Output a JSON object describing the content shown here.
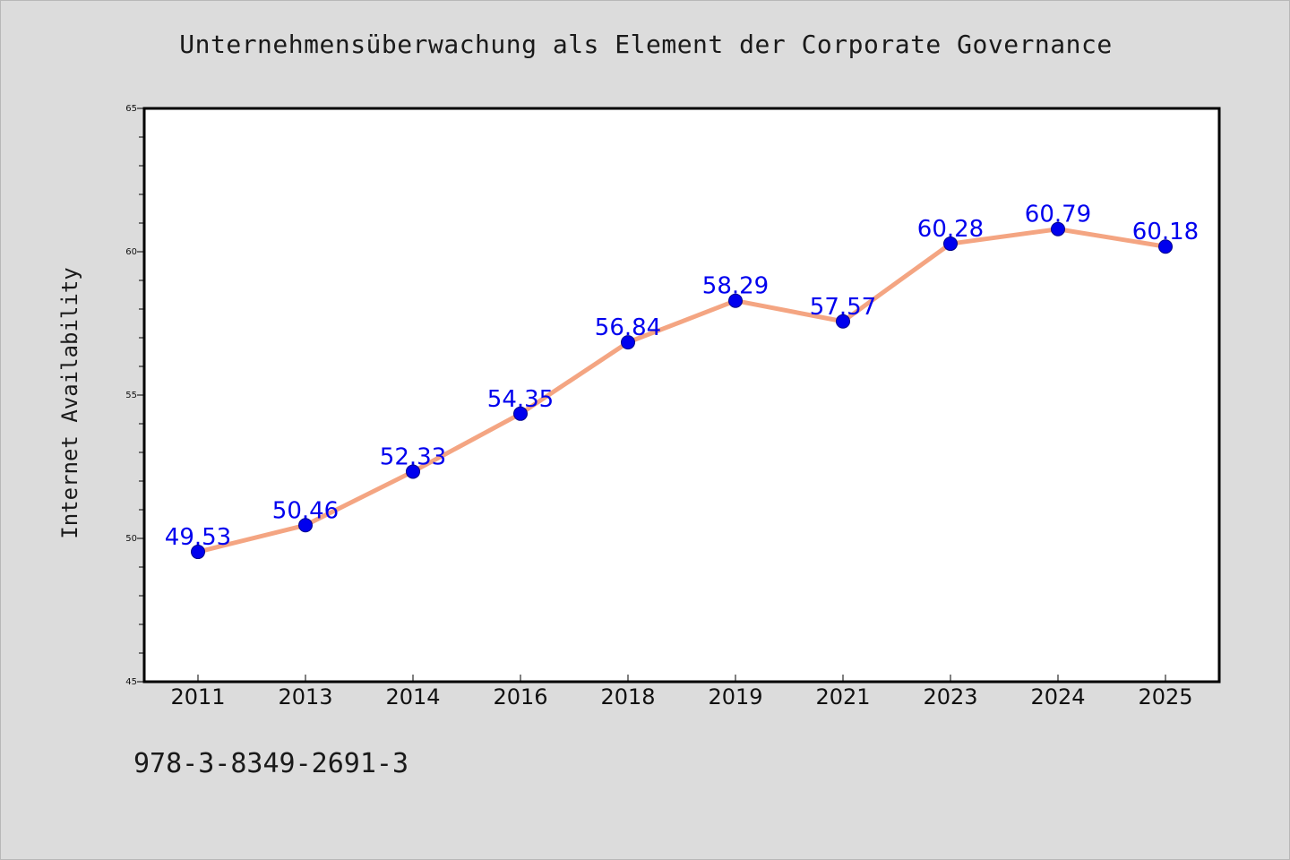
{
  "chart_data": {
    "type": "line",
    "title": "Unternehmensüberwachung als Element der Corporate Governance",
    "xlabel": "",
    "ylabel": "Internet Availability",
    "categories": [
      "2011",
      "2013",
      "2014",
      "2016",
      "2018",
      "2019",
      "2021",
      "2023",
      "2024",
      "2025"
    ],
    "series": [
      {
        "values": [
          49.53,
          50.46,
          52.33,
          54.35,
          56.84,
          58.29,
          57.57,
          60.28,
          60.79,
          60.18
        ]
      }
    ],
    "data_labels": [
      "49.53",
      "50.46",
      "52.33",
      "54.35",
      "56.84",
      "58.29",
      "57.57",
      "60.28",
      "60.79",
      "60.18"
    ],
    "ylim": [
      45,
      65
    ],
    "yticks": [
      45,
      50,
      55,
      60,
      65
    ],
    "grid": false,
    "line_color": "#f4a582",
    "marker_color": "#0000ee",
    "label_color": "#0000ee",
    "background_color": "#dcdcdc",
    "plot_background": "#ffffff"
  },
  "footer": {
    "isbn": "978-3-8349-2691-3"
  }
}
